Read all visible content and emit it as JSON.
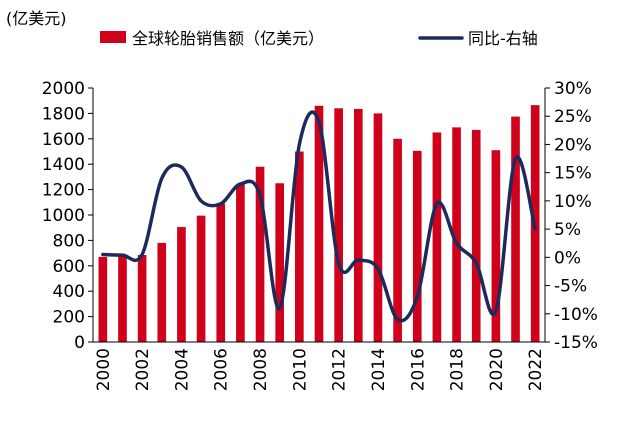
{
  "chart_data": {
    "type": "bar+line",
    "unit_label": "(亿美元)",
    "categories": [
      "2000",
      "2001",
      "2002",
      "2003",
      "2004",
      "2005",
      "2006",
      "2007",
      "2008",
      "2009",
      "2010",
      "2011",
      "2012",
      "2013",
      "2014",
      "2015",
      "2016",
      "2017",
      "2018",
      "2019",
      "2020",
      "2021",
      "2022"
    ],
    "x_tick_labels": [
      "2000",
      "2002",
      "2004",
      "2006",
      "2008",
      "2010",
      "2012",
      "2014",
      "2016",
      "2018",
      "2020",
      "2022"
    ],
    "series": [
      {
        "name": "全球轮胎销售额（亿美元）",
        "type": "bar",
        "axis": "left",
        "color": "#d0021b",
        "values": [
          670,
          675,
          685,
          780,
          905,
          995,
          1090,
          1240,
          1380,
          1250,
          1500,
          1860,
          1840,
          1835,
          1800,
          1600,
          1505,
          1650,
          1690,
          1670,
          1510,
          1775,
          1865
        ]
      },
      {
        "name": "同比-右轴",
        "type": "line",
        "axis": "right",
        "color": "#1f2a5c",
        "values": [
          0.5,
          0.4,
          0.5,
          14.0,
          16.0,
          10.0,
          9.5,
          13.0,
          11.0,
          -9.0,
          20.0,
          24.0,
          -1.0,
          -0.5,
          -2.0,
          -11.0,
          -7.0,
          9.5,
          2.5,
          -1.0,
          -9.5,
          17.5,
          5.0
        ]
      }
    ],
    "y_left": {
      "min": 0,
      "max": 2000,
      "step": 200,
      "ticks": [
        "0",
        "200",
        "400",
        "600",
        "800",
        "1000",
        "1200",
        "1400",
        "1600",
        "1800",
        "2000"
      ]
    },
    "y_right": {
      "min": -15,
      "max": 30,
      "step": 5,
      "ticks": [
        "-15%",
        "-10%",
        "-5%",
        "0%",
        "5%",
        "10%",
        "15%",
        "20%",
        "25%",
        "30%"
      ]
    },
    "legend_position": "top"
  }
}
